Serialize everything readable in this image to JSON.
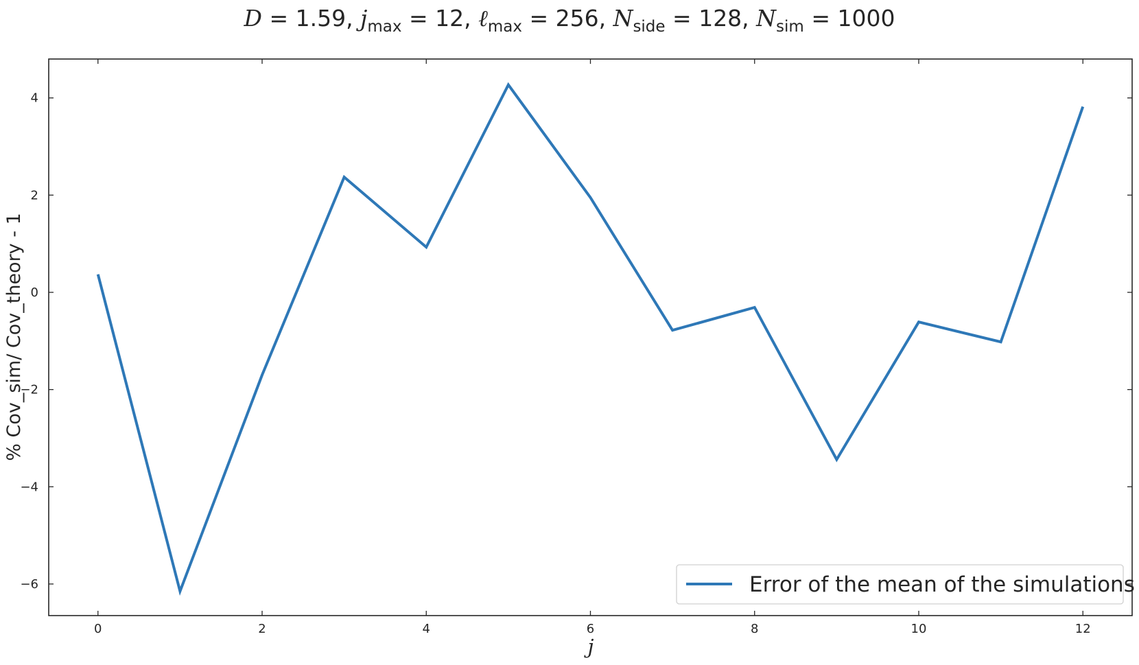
{
  "chart_data": {
    "type": "line",
    "title": "D = 1.59,  j_max = 12,  ℓ_max = 256,  N_side = 128, N_sim = 1000",
    "title_parts": {
      "d_sym": "D",
      "d_val": " = 1.59,  ",
      "j_sym": "j",
      "j_sub": "max",
      "j_val": " = 12,  ",
      "l_sym": "ℓ",
      "l_sub": "max",
      "l_val": " = 256,  ",
      "ns_sym": "N",
      "ns_sub": "side",
      "ns_val": " = 128, ",
      "nsim_sym": "N",
      "nsim_sub": "sim",
      "nsim_val": " = 1000"
    },
    "xlabel": "j",
    "ylabel": "% Cov_sim/ Cov_theory - 1",
    "xlim": [
      -0.6,
      12.6
    ],
    "ylim": [
      -6.65,
      4.8
    ],
    "xticks": [
      0,
      2,
      4,
      6,
      8,
      10,
      12
    ],
    "xtick_labels": [
      "0",
      "2",
      "4",
      "6",
      "8",
      "10",
      "12"
    ],
    "yticks": [
      -6,
      -4,
      -2,
      0,
      2,
      4
    ],
    "ytick_labels": [
      "−6",
      "−4",
      "−2",
      "0",
      "2",
      "4"
    ],
    "grid": false,
    "legend_position": "lower-right",
    "series": [
      {
        "name": "Error of the mean of the simulations",
        "color": "#2e78b7",
        "x": [
          0,
          1,
          2,
          3,
          4,
          5,
          6,
          7,
          8,
          9,
          10,
          11,
          12
        ],
        "y": [
          0.37,
          -6.15,
          -1.7,
          2.37,
          0.93,
          4.27,
          1.95,
          -0.78,
          -0.31,
          -3.44,
          -0.61,
          -1.02,
          3.82
        ]
      }
    ]
  }
}
